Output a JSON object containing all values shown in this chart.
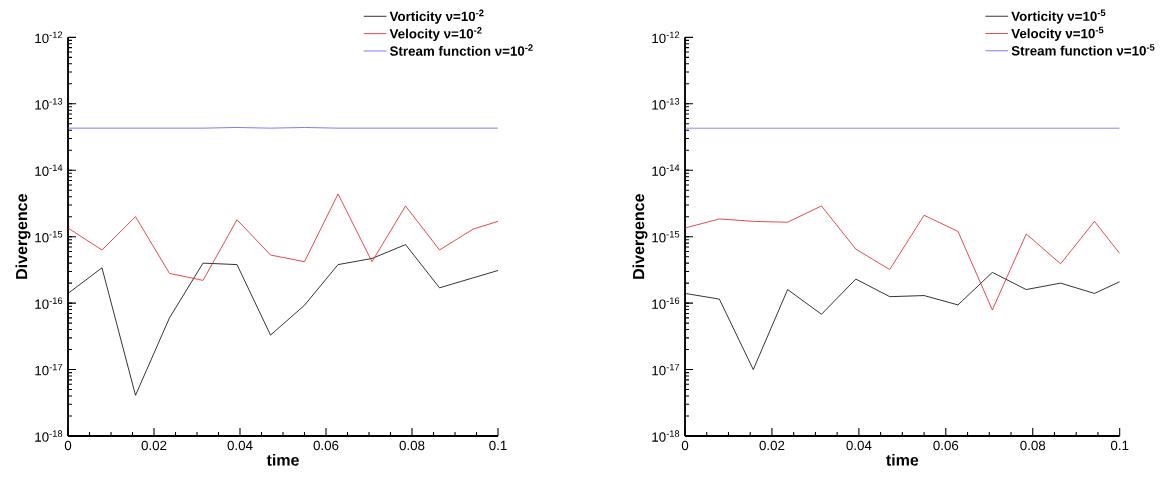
{
  "chart_data": [
    {
      "type": "line",
      "xlabel": "time",
      "ylabel": "Divergence",
      "log": "y",
      "grid": false,
      "legend": "top right",
      "marker": "none",
      "line_style": "solid",
      "x": [
        0,
        0.0079,
        0.0157,
        0.0236,
        0.0314,
        0.0393,
        0.0471,
        0.055,
        0.0628,
        0.0707,
        0.0785,
        0.0864,
        0.0942,
        0.1
      ],
      "xlim": [
        0,
        0.1
      ],
      "ylim": [
        1e-18,
        1e-12
      ],
      "xticks": [
        0,
        0.02,
        0.04,
        0.06,
        0.08,
        0.1
      ],
      "yticks": [
        {
          "value": 1e-18,
          "label": "10$^{-18}$"
        },
        {
          "value": 1e-17,
          "label": "10$^{-17}$"
        },
        {
          "value": 1e-16,
          "label": "10$^{-16}$"
        },
        {
          "value": 1e-15,
          "label": "10$^{-15}$"
        },
        {
          "value": 1e-14,
          "label": "10$^{-14}$"
        },
        {
          "value": 1e-13,
          "label": "10$^{-13}$"
        },
        {
          "value": 1e-12,
          "label": "10$^{-12}$"
        }
      ],
      "series": [
        {
          "name": "Vorticity  ν=10$^{-2}$",
          "color": "#000000",
          "values": [
            1.4e-16,
            3.4e-16,
            4.1e-18,
            6e-17,
            4e-16,
            3.8e-16,
            3.3e-17,
            9.3e-17,
            3.8e-16,
            4.7e-16,
            7.6e-16,
            1.7e-16,
            2.4e-16,
            3.1e-16
          ]
        },
        {
          "name": "Velocity  ν=10$^{-2}$",
          "color": "#e02020",
          "values": [
            1.35e-15,
            6.3e-16,
            2e-15,
            2.8e-16,
            2.2e-16,
            1.8e-15,
            5.3e-16,
            4.2e-16,
            4.4e-15,
            4.2e-16,
            2.9e-15,
            6.3e-16,
            1.3e-15,
            1.7e-15
          ]
        },
        {
          "name": "Stream function  ν=10$^{-2}$",
          "color": "#5a5aff",
          "values": [
            4.3e-14,
            4.3e-14,
            4.3e-14,
            4.3e-14,
            4.3e-14,
            4.4e-14,
            4.3e-14,
            4.4e-14,
            4.3e-14,
            4.3e-14,
            4.3e-14,
            4.3e-14,
            4.3e-14,
            4.3e-14
          ]
        }
      ]
    },
    {
      "type": "line",
      "xlabel": "time",
      "ylabel": "Divergence",
      "log": "y",
      "grid": false,
      "legend": "top right",
      "marker": "none",
      "line_style": "solid",
      "x": [
        0,
        0.0079,
        0.0157,
        0.0236,
        0.0314,
        0.0393,
        0.0471,
        0.055,
        0.0628,
        0.0707,
        0.0785,
        0.0864,
        0.0942,
        0.1
      ],
      "xlim": [
        0,
        0.1
      ],
      "ylim": [
        1e-18,
        1e-12
      ],
      "xticks": [
        0,
        0.02,
        0.04,
        0.06,
        0.08,
        0.1
      ],
      "yticks": [
        {
          "value": 1e-18,
          "label": "10$^{-18}$"
        },
        {
          "value": 1e-17,
          "label": "10$^{-17}$"
        },
        {
          "value": 1e-16,
          "label": "10$^{-16}$"
        },
        {
          "value": 1e-15,
          "label": "10$^{-15}$"
        },
        {
          "value": 1e-14,
          "label": "10$^{-14}$"
        },
        {
          "value": 1e-13,
          "label": "10$^{-13}$"
        },
        {
          "value": 1e-12,
          "label": "10$^{-12}$"
        }
      ],
      "series": [
        {
          "name": "Vorticity  ν=10$^{-5}$",
          "color": "#000000",
          "values": [
            1.4e-16,
            1.15e-16,
            1e-17,
            1.6e-16,
            6.8e-17,
            2.3e-16,
            1.25e-16,
            1.3e-16,
            9.4e-17,
            2.9e-16,
            1.6e-16,
            2e-16,
            1.4e-16,
            2.1e-16
          ]
        },
        {
          "name": "Velocity  ν=10$^{-5}$",
          "color": "#e02020",
          "values": [
            1.35e-15,
            1.85e-15,
            1.7e-15,
            1.65e-15,
            2.9e-15,
            6.5e-16,
            3.2e-16,
            2.1e-15,
            1.2e-15,
            7.9e-17,
            1.1e-15,
            3.9e-16,
            1.7e-15,
            5.6e-16
          ]
        },
        {
          "name": "Stream function  ν=10$^{-5}$",
          "color": "#5a5aff",
          "values": [
            4.3e-14,
            4.3e-14,
            4.3e-14,
            4.3e-14,
            4.3e-14,
            4.3e-14,
            4.3e-14,
            4.3e-14,
            4.3e-14,
            4.3e-14,
            4.3e-14,
            4.3e-14,
            4.3e-14,
            4.3e-14
          ]
        }
      ]
    }
  ]
}
